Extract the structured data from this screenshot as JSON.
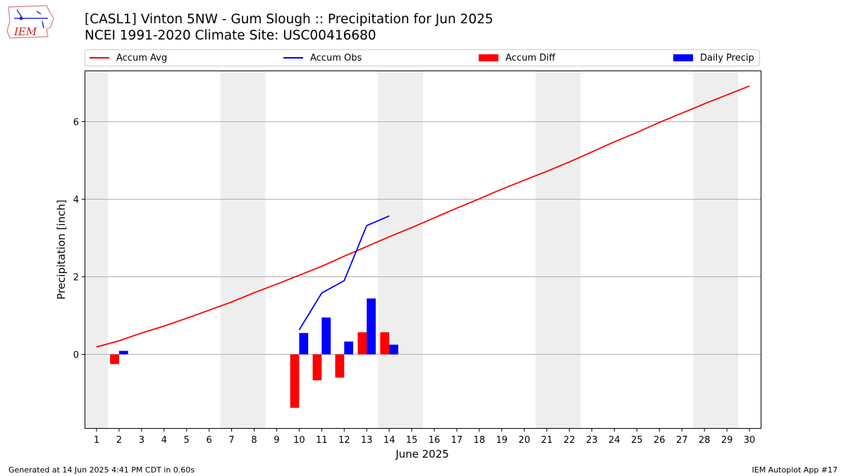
{
  "header": {
    "title_line1": "[CASL1] Vinton 5NW - Gum Slough :: Precipitation for Jun 2025",
    "title_line2": "NCEI 1991-2020 Climate Site: USC00416680",
    "logo_text": "IEM"
  },
  "footer": {
    "generated": "Generated at 14 Jun 2025 4:41 PM CDT in 0.60s",
    "app": "IEM Autoplot App #17"
  },
  "colors": {
    "avg": "#ff0000",
    "obs": "#0000ff",
    "diff": "#ff0000",
    "daily": "#0000ff",
    "weekend": "#eeeeee",
    "grid": "#b0b0b0"
  },
  "chart_data": {
    "type": "bar",
    "xlabel": "June 2025",
    "ylabel": "Precipitation [inch]",
    "xlim": [
      0.5,
      30.5
    ],
    "ylim": [
      -1.9,
      7.3
    ],
    "yticks": [
      0,
      2,
      4,
      6
    ],
    "xticks": [
      1,
      2,
      3,
      4,
      5,
      6,
      7,
      8,
      9,
      10,
      11,
      12,
      13,
      14,
      15,
      16,
      17,
      18,
      19,
      20,
      21,
      22,
      23,
      24,
      25,
      26,
      27,
      28,
      29,
      30
    ],
    "weekend_spans": [
      [
        0.5,
        1.5
      ],
      [
        6.5,
        8.5
      ],
      [
        13.5,
        15.5
      ],
      [
        20.5,
        22.5
      ],
      [
        27.5,
        29.5
      ]
    ],
    "grid": "y",
    "legend_placement": "top",
    "legend": [
      "Accum Avg",
      "Accum Obs",
      "Accum Diff",
      "Daily Precip"
    ],
    "series": [
      {
        "name": "Accum Avg",
        "kind": "line",
        "x": [
          1,
          2,
          3,
          4,
          5,
          6,
          7,
          8,
          9,
          10,
          11,
          12,
          13,
          14,
          15,
          16,
          17,
          18,
          19,
          20,
          21,
          22,
          23,
          24,
          25,
          26,
          27,
          28,
          29,
          30
        ],
        "values": [
          0.19,
          0.35,
          0.55,
          0.73,
          0.93,
          1.14,
          1.35,
          1.59,
          1.81,
          2.04,
          2.27,
          2.53,
          2.78,
          3.03,
          3.27,
          3.52,
          3.77,
          4.01,
          4.26,
          4.49,
          4.72,
          4.96,
          5.22,
          5.48,
          5.72,
          5.98,
          6.22,
          6.46,
          6.69,
          6.92
        ]
      },
      {
        "name": "Accum Obs",
        "kind": "line",
        "x": [
          10,
          11,
          12,
          13,
          14
        ],
        "values": [
          0.63,
          1.58,
          1.9,
          3.32,
          3.57
        ]
      },
      {
        "name": "Accum Diff",
        "kind": "bar",
        "x": [
          2,
          10,
          11,
          12,
          13,
          14
        ],
        "values": [
          -0.25,
          -1.38,
          -0.67,
          -0.6,
          0.57,
          0.57
        ]
      },
      {
        "name": "Daily Precip",
        "kind": "bar",
        "x": [
          2,
          10,
          11,
          12,
          13,
          14
        ],
        "values": [
          0.09,
          0.55,
          0.95,
          0.33,
          1.44,
          0.25
        ]
      }
    ]
  }
}
